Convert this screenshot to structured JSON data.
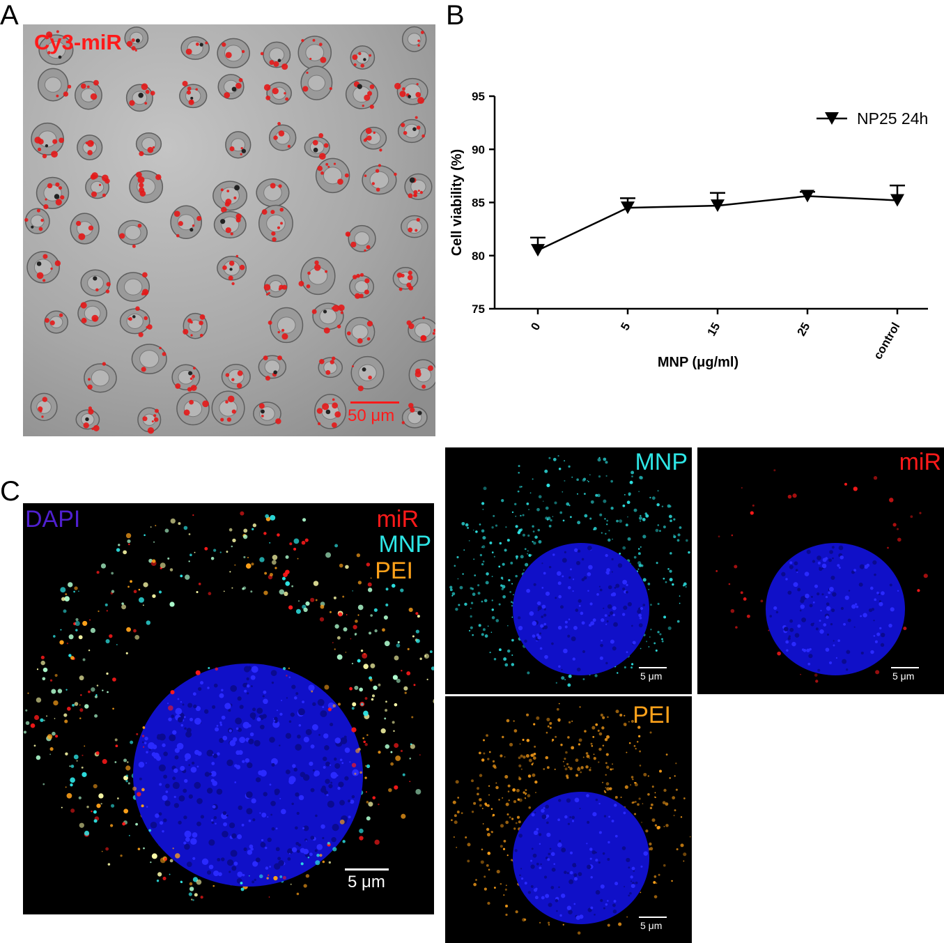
{
  "panels": {
    "A": {
      "letter": "A",
      "label": "Cy3-miR",
      "scale_label": "50 μm",
      "colors": {
        "label": "#ff1a1a",
        "scale": "#ff1a1a"
      }
    },
    "B": {
      "letter": "B"
    },
    "C": {
      "letter": "C",
      "merged": {
        "label_dapi": "DAPI",
        "label_mir": "miR",
        "label_mnp": "MNP",
        "label_pei": "PEI",
        "scale_label": "5 μm"
      },
      "mnp": {
        "label": "MNP",
        "scale_label": "5 μm"
      },
      "mir": {
        "label": "miR",
        "scale_label": "5 μm"
      },
      "pei": {
        "label": "PEI",
        "scale_label": "5 μm"
      },
      "colors": {
        "dapi": "#5020d0",
        "nucleus": "#1a1aff",
        "mir": "#ff1a1a",
        "mnp": "#2ee6e6",
        "pei": "#ffa21a"
      }
    }
  },
  "chart_data": {
    "type": "line",
    "categories": [
      "0",
      "5",
      "15",
      "25",
      "control"
    ],
    "series": [
      {
        "name": "NP25 24h",
        "values": [
          80.5,
          84.5,
          84.7,
          85.6,
          85.2
        ],
        "error": [
          1.2,
          0.9,
          1.2,
          0.4,
          1.4
        ]
      }
    ],
    "xlabel": "MNP (μg/ml)",
    "ylabel": "Cell viability (%)",
    "ylim": [
      75,
      95
    ],
    "yticks": [
      75,
      80,
      85,
      90,
      95
    ],
    "legend": "top-right",
    "grid": false
  }
}
